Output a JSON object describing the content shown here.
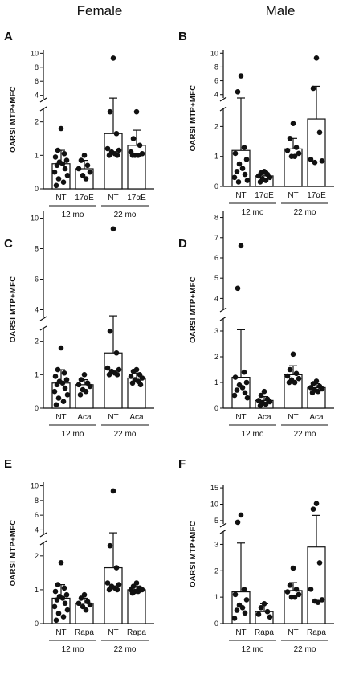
{
  "headers": {
    "female": "Female",
    "male": "Male"
  },
  "chart_data": [
    {
      "id": "A",
      "type": "bar",
      "panel_label": "A",
      "ylabel": "OARSI MTP+MFC",
      "categories": [
        "NT",
        "17αE",
        "NT",
        "17αE"
      ],
      "groups": [
        {
          "label": "12 mo",
          "span": [
            0,
            1
          ]
        },
        {
          "label": "22 mo",
          "span": [
            2,
            3
          ]
        }
      ],
      "y_axis": {
        "segments": [
          {
            "range": [
              0,
              2.4
            ],
            "ticks": [
              0,
              1,
              2
            ]
          },
          {
            "range": [
              3.5,
              10.5
            ],
            "ticks": [
              4,
              6,
              8,
              10
            ]
          }
        ]
      },
      "bars": [
        {
          "mean": 0.75,
          "error_upper": 1.15,
          "points": [
            1.8,
            1.15,
            1.05,
            0.95,
            0.85,
            0.8,
            0.75,
            0.7,
            0.6,
            0.5,
            0.4,
            0.3,
            0.2,
            0.1
          ]
        },
        {
          "mean": 0.6,
          "error_upper": 0.85,
          "points": [
            1.0,
            0.85,
            0.7,
            0.6,
            0.5,
            0.4,
            0.3
          ]
        },
        {
          "mean": 1.65,
          "error_upper": 3.6,
          "points": [
            9.3,
            2.3,
            1.65,
            1.2,
            1.15,
            1.1,
            1.05,
            1.0,
            1.0
          ]
        },
        {
          "mean": 1.3,
          "error_upper": 1.75,
          "points": [
            2.3,
            1.5,
            1.3,
            1.1,
            1.05,
            1.0,
            1.0,
            1.0
          ]
        }
      ]
    },
    {
      "id": "B",
      "type": "bar",
      "panel_label": "B",
      "ylabel": "OARSI MTP+MFC",
      "categories": [
        "NT",
        "17αE",
        "NT",
        "17αE"
      ],
      "groups": [
        {
          "label": "12 mo",
          "span": [
            0,
            1
          ]
        },
        {
          "label": "22 mo",
          "span": [
            2,
            3
          ]
        }
      ],
      "y_axis": {
        "segments": [
          {
            "range": [
              0,
              2.6
            ],
            "ticks": [
              0,
              1,
              2
            ]
          },
          {
            "range": [
              3.5,
              10.5
            ],
            "ticks": [
              4,
              6,
              8,
              10
            ]
          }
        ]
      },
      "bars": [
        {
          "mean": 1.2,
          "error_upper": 3.2,
          "points": [
            6.7,
            4.4,
            1.3,
            1.1,
            0.9,
            0.75,
            0.6,
            0.5,
            0.4,
            0.3,
            0.2,
            0.15
          ]
        },
        {
          "mean": 0.35,
          "error_upper": 0.5,
          "points": [
            0.5,
            0.45,
            0.4,
            0.35,
            0.3,
            0.25,
            0.2,
            0.15
          ]
        },
        {
          "mean": 1.25,
          "error_upper": 1.6,
          "points": [
            2.1,
            1.6,
            1.3,
            1.2,
            1.1,
            1.0,
            1.0
          ]
        },
        {
          "mean": 2.25,
          "error_upper": 5.2,
          "points": [
            9.3,
            4.9,
            1.8,
            0.9,
            0.85,
            0.8
          ]
        }
      ]
    },
    {
      "id": "C",
      "type": "bar",
      "panel_label": "C",
      "ylabel": "OARSI MTP+MFC",
      "categories": [
        "NT",
        "Aca",
        "NT",
        "Aca"
      ],
      "groups": [
        {
          "label": "12 mo",
          "span": [
            0,
            1
          ]
        },
        {
          "label": "22 mo",
          "span": [
            2,
            3
          ]
        }
      ],
      "y_axis": {
        "segments": [
          {
            "range": [
              0,
              2.4
            ],
            "ticks": [
              0,
              1,
              2
            ]
          },
          {
            "range": [
              3.5,
              10.5
            ],
            "ticks": [
              4,
              6,
              8,
              10
            ]
          }
        ]
      },
      "bars": [
        {
          "mean": 0.75,
          "error_upper": 1.15,
          "points": [
            1.8,
            1.15,
            1.05,
            0.95,
            0.85,
            0.8,
            0.75,
            0.7,
            0.6,
            0.5,
            0.4,
            0.3,
            0.2,
            0.1
          ]
        },
        {
          "mean": 0.7,
          "error_upper": 0.85,
          "points": [
            1.0,
            0.85,
            0.75,
            0.7,
            0.65,
            0.55,
            0.5,
            0.4
          ]
        },
        {
          "mean": 1.65,
          "error_upper": 3.6,
          "points": [
            9.3,
            2.3,
            1.65,
            1.2,
            1.15,
            1.1,
            1.05,
            1.0,
            1.0
          ]
        },
        {
          "mean": 0.9,
          "error_upper": 1.05,
          "points": [
            1.15,
            1.1,
            1.0,
            0.95,
            0.9,
            0.85,
            0.8,
            0.75,
            0.7
          ]
        }
      ]
    },
    {
      "id": "D",
      "type": "bar",
      "panel_label": "D",
      "ylabel": "OARSI MTP+MFC",
      "categories": [
        "NT",
        "Aca",
        "NT",
        "Aca"
      ],
      "groups": [
        {
          "label": "12 mo",
          "span": [
            0,
            1
          ]
        },
        {
          "label": "22 mo",
          "span": [
            2,
            3
          ]
        }
      ],
      "y_axis": {
        "segments": [
          {
            "range": [
              0,
              3.5
            ],
            "ticks": [
              0,
              1,
              2,
              3
            ]
          },
          {
            "range": [
              3.5,
              8.3
            ],
            "ticks": [
              4,
              5,
              6,
              7,
              8
            ]
          }
        ]
      },
      "bars": [
        {
          "mean": 1.2,
          "error_upper": 3.05,
          "points": [
            6.6,
            4.5,
            1.4,
            1.2,
            1.0,
            0.9,
            0.8,
            0.7,
            0.6,
            0.5,
            0.4
          ]
        },
        {
          "mean": 0.3,
          "error_upper": 0.45,
          "points": [
            0.65,
            0.5,
            0.35,
            0.3,
            0.25,
            0.2,
            0.15,
            0.1
          ]
        },
        {
          "mean": 1.3,
          "error_upper": 1.65,
          "points": [
            2.1,
            1.5,
            1.35,
            1.25,
            1.15,
            1.1,
            1.0,
            1.0
          ]
        },
        {
          "mean": 0.8,
          "error_upper": 0.95,
          "points": [
            1.05,
            0.95,
            0.85,
            0.8,
            0.75,
            0.7,
            0.65,
            0.6
          ]
        }
      ]
    },
    {
      "id": "E",
      "type": "bar",
      "panel_label": "E",
      "ylabel": "OARSI MTP+MFC",
      "categories": [
        "NT",
        "Rapa",
        "NT",
        "Rapa"
      ],
      "groups": [
        {
          "label": "12 mo",
          "span": [
            0,
            1
          ]
        },
        {
          "label": "22 mo",
          "span": [
            2,
            3
          ]
        }
      ],
      "y_axis": {
        "segments": [
          {
            "range": [
              0,
              2.4
            ],
            "ticks": [
              0,
              1,
              2
            ]
          },
          {
            "range": [
              3.5,
              10.5
            ],
            "ticks": [
              4,
              6,
              8,
              10
            ]
          }
        ]
      },
      "bars": [
        {
          "mean": 0.75,
          "error_upper": 1.15,
          "points": [
            1.8,
            1.15,
            1.05,
            0.95,
            0.85,
            0.8,
            0.75,
            0.7,
            0.6,
            0.5,
            0.4,
            0.3,
            0.2,
            0.1
          ]
        },
        {
          "mean": 0.6,
          "error_upper": 0.75,
          "points": [
            0.85,
            0.75,
            0.65,
            0.6,
            0.55,
            0.5,
            0.4
          ]
        },
        {
          "mean": 1.65,
          "error_upper": 3.6,
          "points": [
            9.3,
            2.3,
            1.65,
            1.2,
            1.15,
            1.1,
            1.05,
            1.0,
            1.0
          ]
        },
        {
          "mean": 1.0,
          "error_upper": 1.1,
          "points": [
            1.2,
            1.1,
            1.05,
            1.0,
            1.0,
            0.95,
            0.95,
            0.9
          ]
        }
      ]
    },
    {
      "id": "F",
      "type": "bar",
      "panel_label": "F",
      "ylabel": "OARSI MTP+MFC",
      "categories": [
        "NT",
        "Rapa",
        "NT",
        "Rapa"
      ],
      "groups": [
        {
          "label": "12 mo",
          "span": [
            0,
            1
          ]
        },
        {
          "label": "22 mo",
          "span": [
            2,
            3
          ]
        }
      ],
      "y_axis": {
        "segments": [
          {
            "range": [
              0,
              3.5
            ],
            "ticks": [
              0,
              1,
              2,
              3
            ]
          },
          {
            "range": [
              4,
              16
            ],
            "ticks": [
              5,
              10,
              15
            ]
          }
        ]
      },
      "bars": [
        {
          "mean": 1.2,
          "error_upper": 3.05,
          "points": [
            6.7,
            4.5,
            1.3,
            1.1,
            0.9,
            0.7,
            0.6,
            0.5,
            0.4,
            0.2
          ]
        },
        {
          "mean": 0.45,
          "error_upper": 0.75,
          "points": [
            0.75,
            0.6,
            0.45,
            0.35,
            0.25
          ]
        },
        {
          "mean": 1.25,
          "error_upper": 1.55,
          "points": [
            2.1,
            1.45,
            1.3,
            1.2,
            1.1,
            1.0,
            1.0
          ]
        },
        {
          "mean": 2.9,
          "error_upper": 6.6,
          "points": [
            10.2,
            8.5,
            2.3,
            1.3,
            0.9,
            0.85,
            0.8
          ]
        }
      ]
    }
  ]
}
